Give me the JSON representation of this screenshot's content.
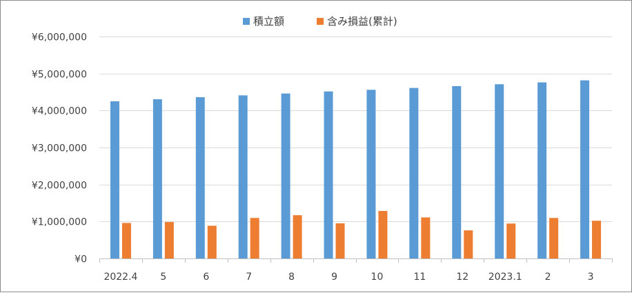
{
  "chart_data": {
    "type": "bar",
    "title": "",
    "xlabel": "",
    "ylabel": "",
    "categories": [
      "2022.4",
      "5",
      "6",
      "7",
      "8",
      "9",
      "10",
      "11",
      "12",
      "2023.1",
      "2",
      "3"
    ],
    "series": [
      {
        "name": "積立額",
        "color": "#5B9BD5",
        "values": [
          4250000,
          4305000,
          4360000,
          4410000,
          4460000,
          4515000,
          4560000,
          4610000,
          4660000,
          4710000,
          4760000,
          4815000
        ]
      },
      {
        "name": "含み損益(累計)",
        "color": "#ED7D31",
        "values": [
          960000,
          985000,
          885000,
          1095000,
          1170000,
          950000,
          1285000,
          1110000,
          760000,
          945000,
          1095000,
          1020000
        ]
      }
    ],
    "ylim": [
      0,
      6000000
    ],
    "yticks": [
      0,
      1000000,
      2000000,
      3000000,
      4000000,
      5000000,
      6000000
    ],
    "ytick_labels": [
      "¥0",
      "¥1,000,000",
      "¥2,000,000",
      "¥3,000,000",
      "¥4,000,000",
      "¥5,000,000",
      "¥6,000,000"
    ],
    "grid": true,
    "legend_position": "top-center",
    "gridline_color": "#D9D9D9",
    "axis_color": "#BFBFBF"
  }
}
